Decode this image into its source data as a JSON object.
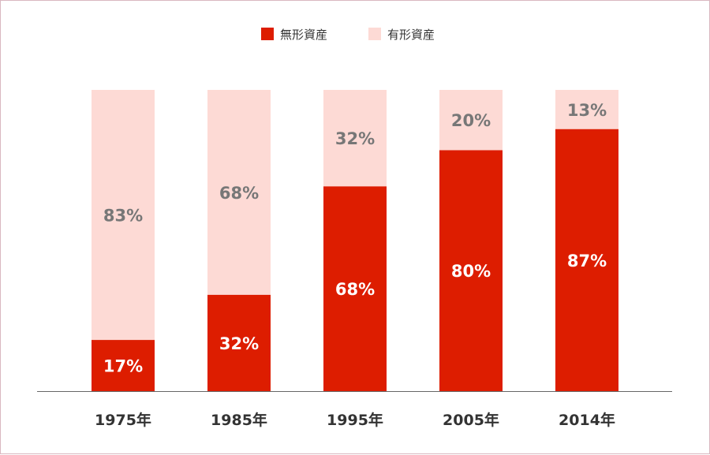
{
  "chart_data": {
    "type": "bar",
    "stacked": true,
    "categories": [
      "1975",
      "1985",
      "1995",
      "2005",
      "2014"
    ],
    "category_suffix": "年",
    "series": [
      {
        "name": "無形資産",
        "values": [
          17,
          32,
          68,
          80,
          87
        ],
        "color": "#dd1d00",
        "label_color": "#ffffff"
      },
      {
        "name": "有形資産",
        "values": [
          83,
          68,
          32,
          20,
          13
        ],
        "color": "#fddad5",
        "label_color": "#777777"
      }
    ],
    "value_suffix": "%",
    "ylim": [
      0,
      100
    ],
    "grid": false,
    "legend_position": "top-center",
    "axis_color": "#666666"
  }
}
